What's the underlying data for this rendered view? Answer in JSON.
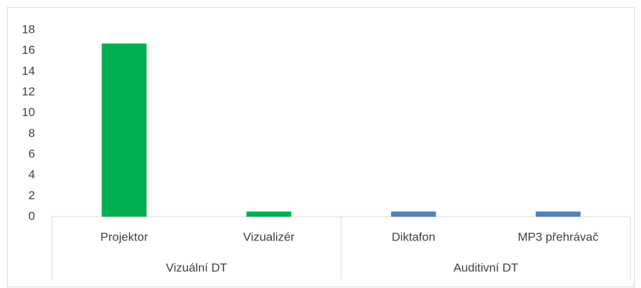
{
  "chart_data": {
    "type": "bar",
    "groups": [
      {
        "name": "Vizuální DT",
        "color": "#00b050",
        "categories": [
          "Projektor",
          "Vizualizér"
        ],
        "values": [
          16.7,
          0.5
        ]
      },
      {
        "name": "Auditivní DT",
        "color": "#4f81bd",
        "categories": [
          "Diktafon",
          "MP3 přehrávač"
        ],
        "values": [
          0.5,
          0.5
        ]
      }
    ],
    "ylim": [
      0,
      18
    ],
    "yticks": [
      0,
      2,
      4,
      6,
      8,
      10,
      12,
      14,
      16,
      18
    ],
    "grid": false
  }
}
